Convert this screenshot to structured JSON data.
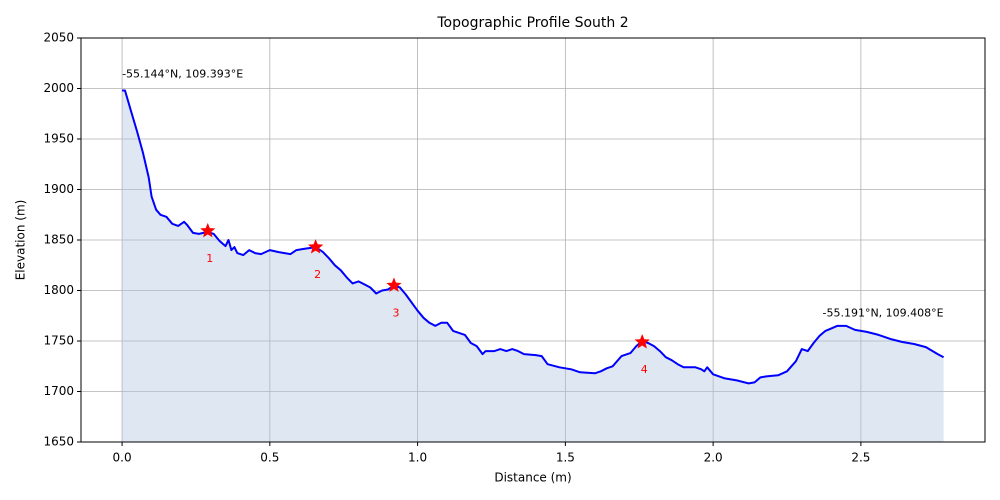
{
  "chart_data": {
    "type": "area-line",
    "title": "Topographic Profile South 2",
    "xlabel": "Distance (m)",
    "ylabel": "Elevation (m)",
    "x": [
      0,
      0.01,
      0.03,
      0.05,
      0.07,
      0.09,
      0.1,
      0.115,
      0.13,
      0.15,
      0.17,
      0.19,
      0.21,
      0.22,
      0.24,
      0.26,
      0.29,
      0.31,
      0.33,
      0.35,
      0.36,
      0.37,
      0.38,
      0.39,
      0.41,
      0.43,
      0.45,
      0.47,
      0.5,
      0.53,
      0.57,
      0.59,
      0.61,
      0.655,
      0.68,
      0.7,
      0.72,
      0.74,
      0.76,
      0.78,
      0.8,
      0.82,
      0.84,
      0.85,
      0.86,
      0.88,
      0.9,
      0.92,
      0.94,
      0.96,
      1.0,
      1.02,
      1.04,
      1.06,
      1.08,
      1.1,
      1.12,
      1.14,
      1.16,
      1.18,
      1.2,
      1.22,
      1.23,
      1.26,
      1.28,
      1.3,
      1.32,
      1.34,
      1.36,
      1.4,
      1.42,
      1.44,
      1.48,
      1.52,
      1.55,
      1.6,
      1.62,
      1.64,
      1.66,
      1.69,
      1.72,
      1.74,
      1.76,
      1.78,
      1.8,
      1.82,
      1.84,
      1.86,
      1.88,
      1.9,
      1.94,
      1.96,
      1.97,
      1.98,
      2.0,
      2.04,
      2.08,
      2.12,
      2.14,
      2.16,
      2.18,
      2.22,
      2.25,
      2.28,
      2.3,
      2.32,
      2.34,
      2.36,
      2.38,
      2.42,
      2.45,
      2.48,
      2.52,
      2.56,
      2.6,
      2.64,
      2.68,
      2.72,
      2.76,
      2.78
    ],
    "values": [
      1998,
      1998,
      1978,
      1958,
      1937,
      1912,
      1893,
      1880,
      1875,
      1873,
      1866,
      1864,
      1868,
      1865,
      1857,
      1856,
      1858,
      1856,
      1849,
      1844,
      1850,
      1840,
      1843,
      1837,
      1835,
      1840,
      1837,
      1836,
      1840,
      1838,
      1836,
      1840,
      1841,
      1843,
      1838,
      1832,
      1825,
      1820,
      1813,
      1807,
      1809,
      1806,
      1803,
      1800,
      1797,
      1800,
      1801,
      1805,
      1803,
      1796,
      1780,
      1773,
      1768,
      1765,
      1768,
      1768,
      1760,
      1758,
      1756,
      1748,
      1745,
      1737,
      1740,
      1740,
      1742,
      1740,
      1742,
      1740,
      1737,
      1736,
      1735,
      1727,
      1724,
      1722,
      1719,
      1718,
      1720,
      1723,
      1725,
      1735,
      1738,
      1745,
      1750,
      1748,
      1745,
      1740,
      1734,
      1731,
      1727,
      1724,
      1724,
      1722,
      1720,
      1724,
      1717,
      1713,
      1711,
      1708,
      1709,
      1714,
      1715,
      1716,
      1720,
      1730,
      1742,
      1740,
      1748,
      1755,
      1760,
      1765,
      1765,
      1761,
      1759,
      1756,
      1752,
      1749,
      1747,
      1744,
      1737,
      1734
    ],
    "color": "#0000ff",
    "fill_color": "#b0c4de",
    "markers": {
      "x": [
        0.29,
        0.655,
        0.92,
        1.76
      ],
      "y": [
        1859,
        1843,
        1805,
        1749
      ],
      "labels": [
        "1",
        "2",
        "3",
        "4"
      ],
      "color": "#ff0000"
    },
    "start_label": "-55.144°N, 109.393°E",
    "end_label": "-55.191°N, 109.408°E",
    "xlim": [
      -0.139,
      2.92
    ],
    "ylim": [
      1650,
      2050
    ],
    "xticks": [
      {
        "value": 0,
        "label": "0.0"
      },
      0.5,
      {
        "value": 1,
        "label": "1.0"
      },
      1.5,
      {
        "value": 2,
        "label": "2.0"
      },
      2.5
    ],
    "yticks": [
      1650,
      1700,
      1750,
      1800,
      1850,
      1900,
      1950,
      2000,
      2050
    ],
    "grid": true
  }
}
